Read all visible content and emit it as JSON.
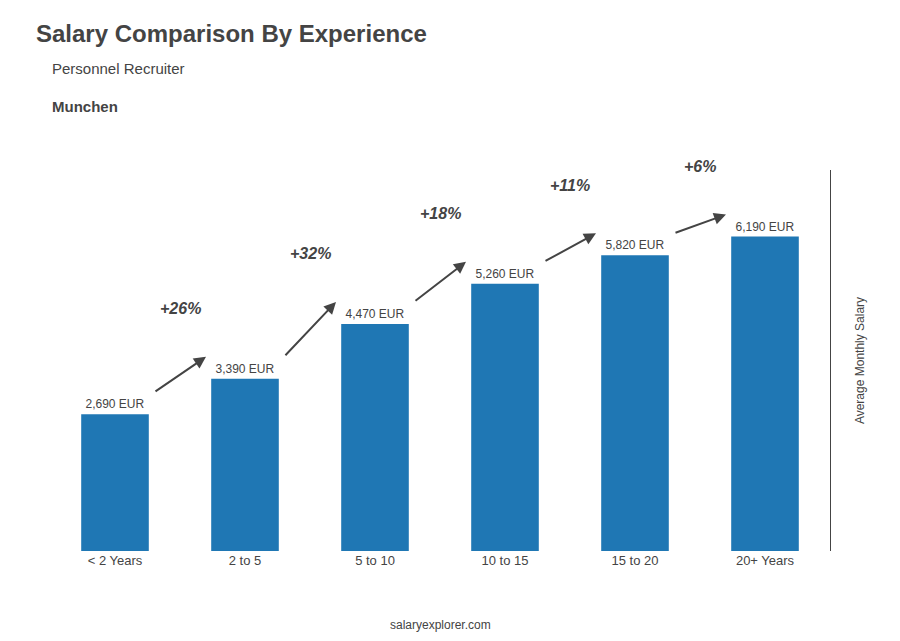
{
  "chart_data": {
    "type": "bar",
    "title": "Salary Comparison By Experience",
    "subtitle": [
      "Personnel Recruiter",
      "Munchen"
    ],
    "ylabel": "Average Monthly Salary",
    "footer": "salaryexplorer.com",
    "categories": [
      "< 2 Years",
      "2 to 5",
      "5 to 10",
      "10 to 15",
      "15 to 20",
      "20+ Years"
    ],
    "values": [
      2690,
      3390,
      4470,
      5260,
      5820,
      6190
    ],
    "value_labels": [
      "2,690 EUR",
      "3,390 EUR",
      "4,470 EUR",
      "5,260 EUR",
      "5,820 EUR",
      "6,190 EUR"
    ],
    "data_labels": true,
    "annotations": [
      {
        "text": "+26%",
        "from": "< 2 Years",
        "to": "2 to 5"
      },
      {
        "text": "+32%",
        "from": "2 to 5",
        "to": "5 to 10"
      },
      {
        "text": "+18%",
        "from": "5 to 10",
        "to": "10 to 15"
      },
      {
        "text": "+11%",
        "from": "10 to 15",
        "to": "15 to 20"
      },
      {
        "text": "+6%",
        "from": "15 to 20",
        "to": "20+ Years"
      }
    ],
    "ylim": [
      0,
      7500
    ],
    "tick_labels": "x",
    "grid": false
  }
}
